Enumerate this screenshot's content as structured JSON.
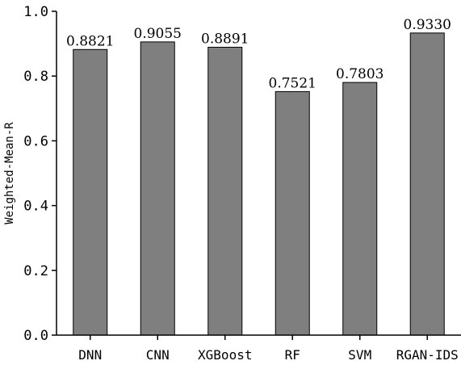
{
  "chart_data": {
    "type": "bar",
    "title": "",
    "xlabel": "",
    "ylabel": "Weighted-Mean-R",
    "ylim": [
      0,
      1.0
    ],
    "yticks": [
      "0.0",
      "0.2",
      "0.4",
      "0.6",
      "0.8",
      "1.0"
    ],
    "categories": [
      "DNN",
      "CNN",
      "XGBoost",
      "RF",
      "SVM",
      "RGAN-IDS"
    ],
    "values": [
      0.8821,
      0.9055,
      0.8891,
      0.7521,
      0.7803,
      0.933
    ],
    "value_labels": [
      "0.8821",
      "0.9055",
      "0.8891",
      "0.7521",
      "0.7803",
      "0.9330"
    ],
    "bar_color": "#7f7f7f",
    "grid": false,
    "legend": "none"
  }
}
